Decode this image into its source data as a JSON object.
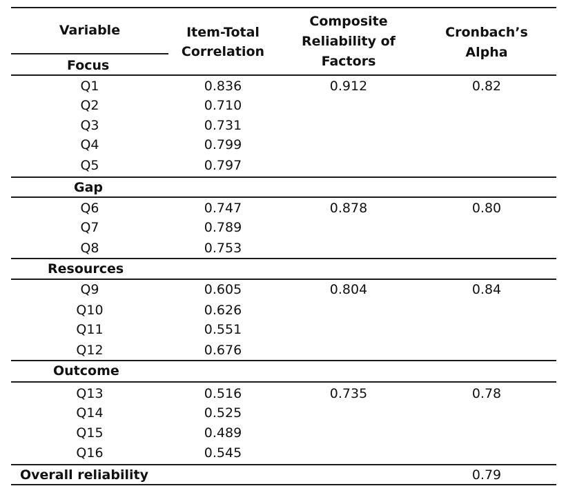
{
  "table": {
    "headers": {
      "variable": "Variable",
      "item_total_line1": "Item-Total",
      "item_total_line2": "Correlation",
      "composite_line1": "Composite",
      "composite_line2": "Reliability of",
      "composite_line3": "Factors",
      "cronbach_line1": "Cronbach’s",
      "cronbach_line2": "Alpha"
    },
    "sections": [
      {
        "name": "Focus",
        "rows": [
          {
            "q": "Q1",
            "itc": "0.836",
            "cr": "0.912",
            "ca": "0.82"
          },
          {
            "q": "Q2",
            "itc": "0.710",
            "cr": "",
            "ca": ""
          },
          {
            "q": "Q3",
            "itc": "0.731",
            "cr": "",
            "ca": ""
          },
          {
            "q": "Q4",
            "itc": "0.799",
            "cr": "",
            "ca": ""
          },
          {
            "q": "Q5",
            "itc": "0.797",
            "cr": "",
            "ca": ""
          }
        ]
      },
      {
        "name": "Gap",
        "rows": [
          {
            "q": "Q6",
            "itc": "0.747",
            "cr": "0.878",
            "ca": "0.80"
          },
          {
            "q": "Q7",
            "itc": "0.789",
            "cr": "",
            "ca": ""
          },
          {
            "q": "Q8",
            "itc": "0.753",
            "cr": "",
            "ca": ""
          }
        ]
      },
      {
        "name": "Resources",
        "rows": [
          {
            "q": "Q9",
            "itc": "0.605",
            "cr": "0.804",
            "ca": "0.84"
          },
          {
            "q": "Q10",
            "itc": "0.626",
            "cr": "",
            "ca": ""
          },
          {
            "q": "Q11",
            "itc": "0.551",
            "cr": "",
            "ca": ""
          },
          {
            "q": "Q12",
            "itc": "0.676",
            "cr": "",
            "ca": ""
          }
        ]
      },
      {
        "name": "Outcome",
        "rows": [
          {
            "q": "Q13",
            "itc": "0.516",
            "cr": "0.735",
            "ca": "0.78"
          },
          {
            "q": "Q14",
            "itc": "0.525",
            "cr": "",
            "ca": ""
          },
          {
            "q": "Q15",
            "itc": "0.489",
            "cr": "",
            "ca": ""
          },
          {
            "q": "Q16",
            "itc": "0.545",
            "cr": "",
            "ca": ""
          }
        ]
      }
    ],
    "overall": {
      "label": "Overall reliability",
      "value": "0.79"
    }
  }
}
